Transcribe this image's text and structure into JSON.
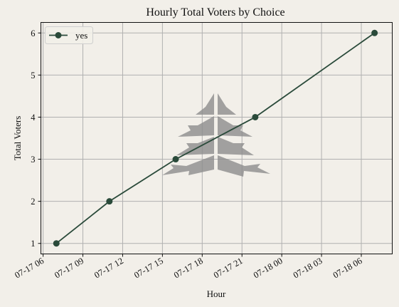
{
  "chart_data": {
    "type": "line",
    "title": "Hourly Total Voters by Choice",
    "xlabel": "Hour",
    "ylabel": "Total Voters",
    "x_ticks": [
      "07-17 06",
      "07-17 09",
      "07-17 12",
      "07-17 15",
      "07-17 18",
      "07-17 21",
      "07-18 00",
      "07-18 03",
      "07-18 06"
    ],
    "y_ticks": [
      "1",
      "2",
      "3",
      "4",
      "5",
      "6"
    ],
    "xlim": [
      "2023-07-17 05:50",
      "2023-07-18 08:20"
    ],
    "ylim": [
      0.75,
      6.25
    ],
    "grid": true,
    "legend_position": "top-left",
    "series": [
      {
        "name": "yes",
        "color": "#2a4a3a",
        "marker": "circle",
        "x": [
          "2023-07-17 07:00",
          "2023-07-17 11:00",
          "2023-07-17 16:00",
          "2023-07-17 22:00",
          "2023-07-18 07:00"
        ],
        "y": [
          1,
          2,
          3,
          4,
          6
        ]
      }
    ],
    "watermark": "tree-logo",
    "colors": {
      "background": "#f2efe9",
      "grid": "#b0b0b0",
      "axes": "#111111",
      "watermark": "#8c8c8c"
    }
  }
}
